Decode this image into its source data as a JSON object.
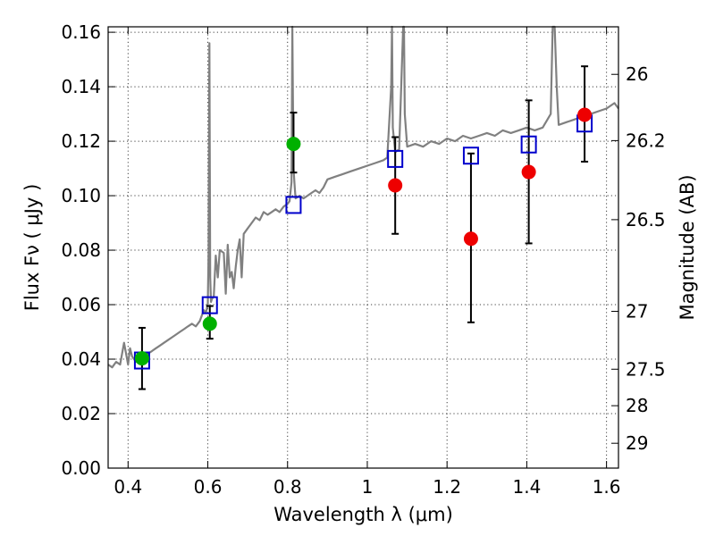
{
  "chart_data": {
    "type": "scatter",
    "xlabel": "Wavelength  λ (μm)",
    "ylabel": "Flux  Fν  ( μJy )",
    "y2label": "Magnitude (AB)",
    "xlim": [
      0.35,
      1.63
    ],
    "ylim": [
      0.0,
      0.162
    ],
    "grid": true,
    "x_ticks": [
      0.4,
      0.6,
      0.8,
      1.0,
      1.2,
      1.4,
      1.6
    ],
    "x_tick_labels": [
      "0.4",
      "0.6",
      "0.8",
      "1",
      "1.2",
      "1.4",
      "1.6"
    ],
    "y_ticks": [
      0.0,
      0.02,
      0.04,
      0.06,
      0.08,
      0.1,
      0.12,
      0.14,
      0.16
    ],
    "y_tick_labels": [
      "0.00",
      "0.02",
      "0.04",
      "0.06",
      "0.08",
      "0.10",
      "0.12",
      "0.14",
      "0.16"
    ],
    "y2_ticks": [
      26,
      26.2,
      26.5,
      27,
      27.5,
      28,
      29
    ],
    "y2_tick_labels": [
      "26",
      "26.2",
      "26.5",
      "27",
      "27.5",
      "28",
      "29"
    ],
    "colors": {
      "spectrum": "#808080",
      "model": "#0000cc",
      "green": "#00b000",
      "red": "#ee0000",
      "errorbar": "#000000"
    },
    "spectrum": {
      "x": [
        0.35,
        0.36,
        0.37,
        0.38,
        0.39,
        0.4,
        0.405,
        0.41,
        0.42,
        0.43,
        0.44,
        0.45,
        0.46,
        0.47,
        0.48,
        0.49,
        0.5,
        0.51,
        0.52,
        0.53,
        0.54,
        0.55,
        0.56,
        0.57,
        0.58,
        0.585,
        0.59,
        0.595,
        0.6,
        0.602,
        0.604,
        0.606,
        0.608,
        0.61,
        0.615,
        0.62,
        0.625,
        0.63,
        0.64,
        0.645,
        0.65,
        0.655,
        0.66,
        0.665,
        0.67,
        0.675,
        0.68,
        0.685,
        0.69,
        0.7,
        0.71,
        0.72,
        0.73,
        0.74,
        0.75,
        0.76,
        0.77,
        0.78,
        0.79,
        0.8,
        0.805,
        0.81,
        0.812,
        0.815,
        0.818,
        0.82,
        0.83,
        0.84,
        0.85,
        0.86,
        0.87,
        0.88,
        0.89,
        0.9,
        0.92,
        0.94,
        0.96,
        0.98,
        1.0,
        1.02,
        1.04,
        1.05,
        1.06,
        1.062,
        1.064,
        1.07,
        1.08,
        1.085,
        1.09,
        1.092,
        1.094,
        1.1,
        1.12,
        1.14,
        1.16,
        1.18,
        1.2,
        1.22,
        1.24,
        1.26,
        1.28,
        1.3,
        1.32,
        1.34,
        1.36,
        1.38,
        1.4,
        1.42,
        1.44,
        1.46,
        1.465,
        1.47,
        1.475,
        1.48,
        1.5,
        1.52,
        1.54,
        1.56,
        1.58,
        1.6,
        1.62,
        1.63
      ],
      "y": [
        0.038,
        0.037,
        0.039,
        0.038,
        0.046,
        0.038,
        0.044,
        0.041,
        0.039,
        0.04,
        0.041,
        0.042,
        0.043,
        0.044,
        0.045,
        0.046,
        0.047,
        0.048,
        0.049,
        0.05,
        0.051,
        0.052,
        0.053,
        0.052,
        0.054,
        0.056,
        0.058,
        0.057,
        0.06,
        0.08,
        0.156,
        0.07,
        0.061,
        0.062,
        0.063,
        0.078,
        0.07,
        0.08,
        0.079,
        0.064,
        0.082,
        0.07,
        0.072,
        0.066,
        0.074,
        0.08,
        0.084,
        0.07,
        0.086,
        0.088,
        0.09,
        0.092,
        0.091,
        0.094,
        0.093,
        0.094,
        0.095,
        0.094,
        0.096,
        0.097,
        0.098,
        0.105,
        0.165,
        0.11,
        0.103,
        0.099,
        0.1,
        0.099,
        0.1,
        0.101,
        0.102,
        0.101,
        0.103,
        0.106,
        0.107,
        0.108,
        0.109,
        0.11,
        0.111,
        0.112,
        0.113,
        0.114,
        0.14,
        0.165,
        0.125,
        0.116,
        0.117,
        0.14,
        0.165,
        0.165,
        0.13,
        0.118,
        0.119,
        0.118,
        0.12,
        0.119,
        0.121,
        0.12,
        0.122,
        0.121,
        0.122,
        0.123,
        0.122,
        0.124,
        0.123,
        0.124,
        0.125,
        0.124,
        0.125,
        0.13,
        0.165,
        0.165,
        0.14,
        0.126,
        0.127,
        0.128,
        0.129,
        0.13,
        0.131,
        0.132,
        0.134,
        0.132
      ]
    },
    "series": [
      {
        "marker": "square",
        "color": "#0000cc",
        "x": [
          0.435,
          0.605,
          0.815,
          1.07,
          1.26,
          1.405,
          1.545
        ],
        "y": [
          0.0395,
          0.0598,
          0.0966,
          0.1135,
          0.1147,
          0.1188,
          0.1265
        ]
      },
      {
        "marker": "circle",
        "color": "#00b000",
        "x": [
          0.435,
          0.605,
          0.815
        ],
        "y": [
          0.0403,
          0.053,
          0.119
        ],
        "yerr_low": [
          0.029,
          0.0475,
          0.1085
        ],
        "yerr_high": [
          0.0515,
          0.0595,
          0.1305
        ]
      },
      {
        "marker": "circle",
        "color": "#ee0000",
        "x": [
          1.07,
          1.26,
          1.405,
          1.545
        ],
        "y": [
          0.1038,
          0.0842,
          0.1087,
          0.1297
        ],
        "yerr_low": [
          0.086,
          0.0535,
          0.0825,
          0.1125
        ],
        "yerr_high": [
          0.1215,
          0.1155,
          0.135,
          0.1475
        ]
      }
    ]
  }
}
